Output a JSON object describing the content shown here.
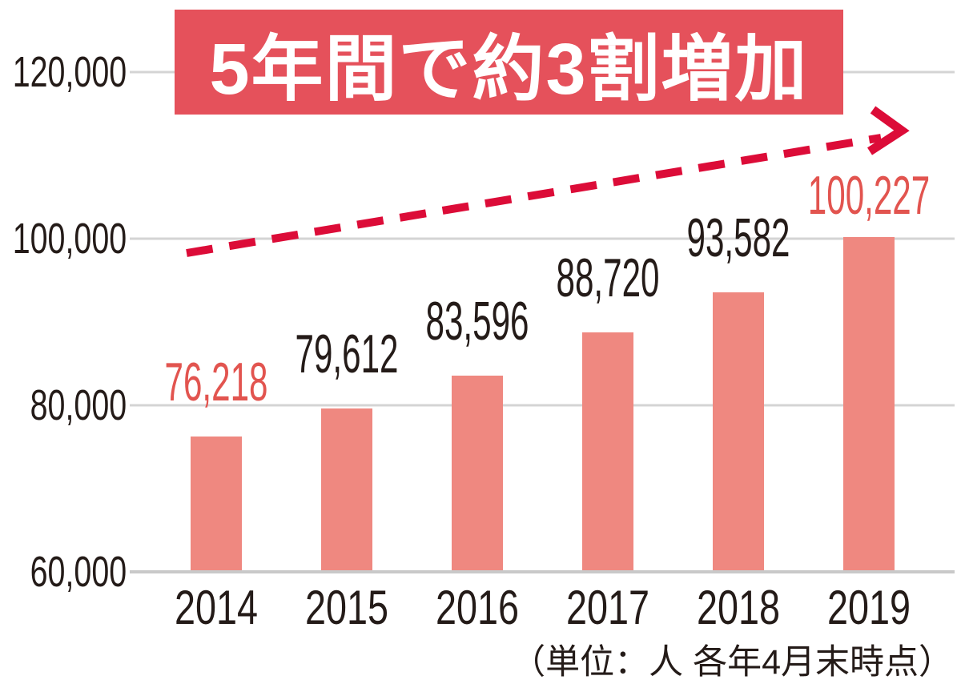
{
  "chart_data": {
    "type": "bar",
    "title": "5年間で約3割増加",
    "footnote": "（単位：人 各年4月末時点）",
    "categories": [
      "2014",
      "2015",
      "2016",
      "2017",
      "2018",
      "2019"
    ],
    "values": [
      76218,
      79612,
      83596,
      88720,
      93582,
      100227
    ],
    "value_labels": [
      "76,218",
      "79,612",
      "83,596",
      "88,720",
      "93,582",
      "100,227"
    ],
    "highlighted_value_indexes": [
      0,
      5
    ],
    "ylim": [
      60000,
      120000
    ],
    "yticks": [
      {
        "value": 120000,
        "label": "120,000"
      },
      {
        "value": 100000,
        "label": "100,000"
      },
      {
        "value": 80000,
        "label": "80,000"
      },
      {
        "value": 60000,
        "label": "60,000"
      }
    ],
    "grid": "horizontal",
    "legend": "none",
    "annotation": {
      "type": "dashed-arrow",
      "direction": "up-right"
    },
    "colors": {
      "bar": "#EF8880",
      "banner_bg": "#E5515B",
      "banner_text": "#FFFFFF",
      "highlight_text": "#E2544F",
      "value_text": "#241B18",
      "arrow": "#DC0C38",
      "grid_line": "#D4D4D4",
      "axis_line": "#C9C9C9"
    }
  }
}
